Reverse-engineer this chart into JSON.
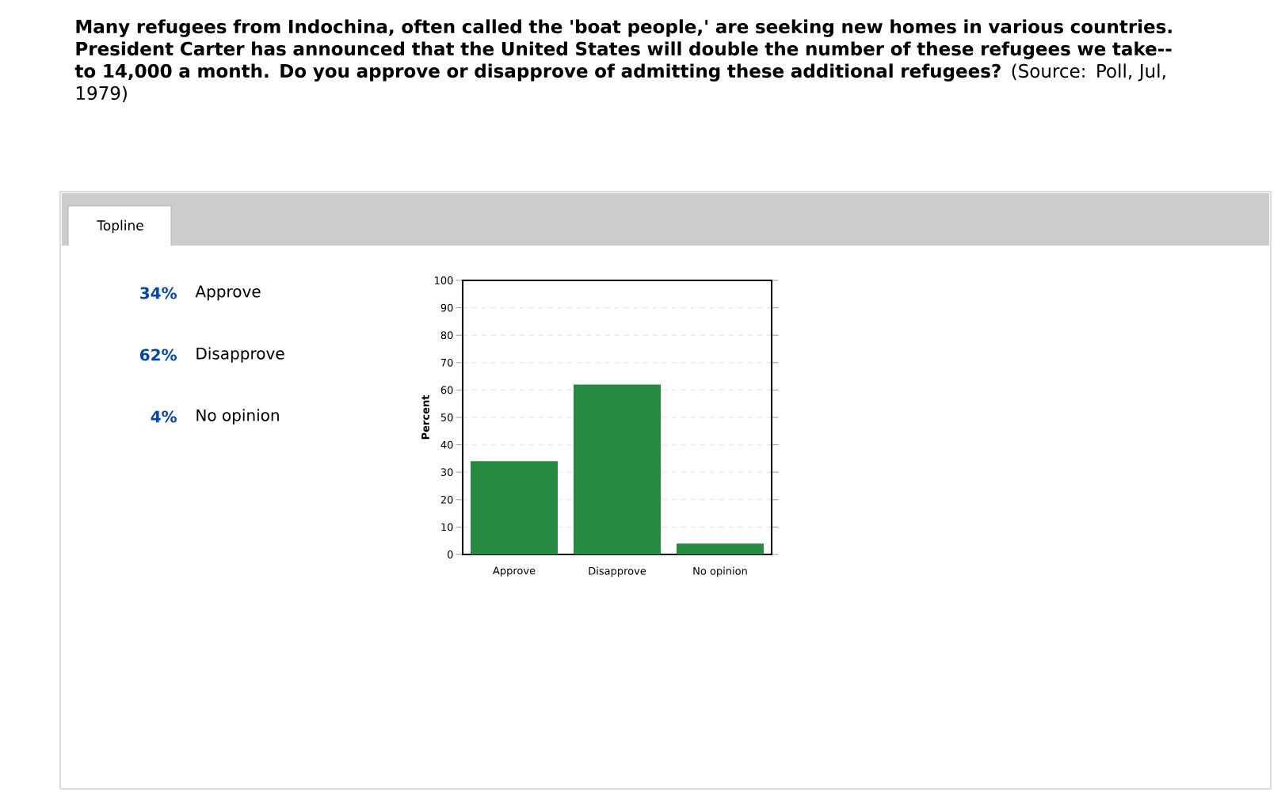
{
  "chart_data": {
    "type": "bar",
    "title": "**Many refugees from Indochina, often called the 'boat people,' are seeking new homes in various countries. President Carter has announced that the United States will double the number of these refugees we take--to 14,000 a month. Do you approve or disapprove of admitting these additional refugees?** (Source: Poll, Jul, 1979)",
    "annotations": [
      "Topline",
      "34%",
      "62%",
      "4%"
    ],
    "ylabel": "Percent",
    "categories": [
      "Approve",
      "Disapprove",
      "No opinion"
    ],
    "values": [
      34,
      62,
      4
    ],
    "color": "#268a40",
    "ylim": [
      0,
      100
    ],
    "yticks": [
      0,
      10,
      20,
      30,
      40,
      50,
      60,
      70,
      80,
      90,
      100
    ],
    "grid": "y"
  }
}
